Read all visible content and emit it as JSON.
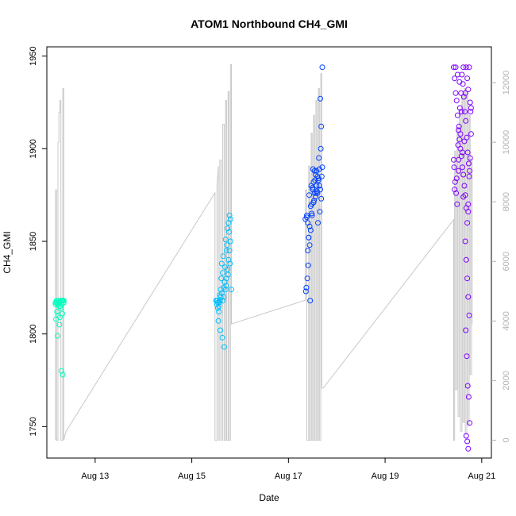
{
  "chart_data": {
    "type": "scatter",
    "title": "ATOM1 Northbound CH4_GMI",
    "xlabel": "Date",
    "ylabel": "CH4_GMI",
    "x_ticks": [
      "Aug 13",
      "Aug 15",
      "Aug 17",
      "Aug 19",
      "Aug 21"
    ],
    "x_range_days": [
      12.0,
      21.2
    ],
    "y_left": {
      "range": [
        1733,
        1955
      ],
      "ticks": [
        1750,
        1800,
        1850,
        1900,
        1950
      ]
    },
    "y_right": {
      "range": [
        -600,
        13200
      ],
      "ticks": [
        0,
        2000,
        4000,
        6000,
        8000,
        10000,
        12000
      ],
      "color": "#b3b3b3"
    },
    "grid": false,
    "legend": "none",
    "series": [
      {
        "kind": "points",
        "axis": "left",
        "colors": [
          "#00ffbf",
          "#00bfff",
          "#0040ff",
          "#7f00ff"
        ],
        "clusters": [
          {
            "x": [
              12.18,
              12.2,
              12.22,
              12.24,
              12.26,
              12.28,
              12.3,
              12.31,
              12.33,
              12.35,
              12.21,
              12.23,
              12.25,
              12.27,
              12.29,
              12.32,
              12.19,
              12.34,
              12.22,
              12.26,
              12.3,
              12.33,
              12.2,
              12.28,
              12.24,
              12.32,
              12.18,
              12.35
            ],
            "y": [
              1817,
              1818,
              1816,
              1818,
              1817,
              1815,
              1818,
              1816,
              1818,
              1817,
              1812,
              1810,
              1815,
              1809,
              1814,
              1811,
              1808,
              1818,
              1799,
              1805,
              1780,
              1778,
              1817,
              1818,
              1817,
              1818,
              1816,
              1818
            ]
          },
          {
            "x": [
              15.5,
              15.52,
              15.54,
              15.56,
              15.58,
              15.6,
              15.62,
              15.64,
              15.66,
              15.68,
              15.7,
              15.72,
              15.74,
              15.76,
              15.78,
              15.8,
              15.55,
              15.59,
              15.63,
              15.67,
              15.71,
              15.75,
              15.79,
              15.53,
              15.57,
              15.61,
              15.65,
              15.69,
              15.73,
              15.77,
              15.52,
              15.56,
              15.6,
              15.64,
              15.68,
              15.72,
              15.76,
              15.8,
              15.58,
              15.62,
              15.66,
              15.7,
              15.74,
              15.78,
              15.54,
              15.82
            ],
            "y": [
              1818,
              1816,
              1814,
              1812,
              1818,
              1820,
              1822,
              1818,
              1825,
              1828,
              1824,
              1830,
              1835,
              1840,
              1845,
              1850,
              1807,
              1802,
              1798,
              1793,
              1826,
              1832,
              1838,
              1818,
              1817,
              1830,
              1842,
              1836,
              1848,
              1855,
              1818,
              1815,
              1824,
              1833,
              1828,
              1845,
              1860,
              1862,
              1821,
              1838,
              1820,
              1851,
              1857,
              1864,
              1817,
              1824
            ]
          },
          {
            "x": [
              17.35,
              17.38,
              17.4,
              17.42,
              17.44,
              17.46,
              17.48,
              17.5,
              17.52,
              17.54,
              17.56,
              17.58,
              17.6,
              17.62,
              17.64,
              17.66,
              17.68,
              17.7,
              17.37,
              17.41,
              17.45,
              17.49,
              17.53,
              17.57,
              17.61,
              17.65,
              17.69,
              17.39,
              17.43,
              17.47,
              17.51,
              17.55,
              17.59,
              17.63,
              17.67,
              17.36,
              17.44,
              17.52,
              17.6,
              17.68,
              17.4,
              17.48,
              17.56,
              17.64,
              17.42,
              17.5,
              17.58,
              17.66,
              17.7,
              17.38,
              17.46,
              17.54,
              17.62
            ],
            "y": [
              1862,
              1864,
              1860,
              1852,
              1848,
              1856,
              1870,
              1878,
              1882,
              1888,
              1886,
              1880,
              1876,
              1884,
              1889,
              1878,
              1873,
              1890,
              1825,
              1837,
              1818,
              1864,
              1872,
              1876,
              1860,
              1866,
              1885,
              1830,
              1875,
              1880,
              1889,
              1883,
              1877,
              1895,
              1900,
              1823,
              1858,
              1871,
              1885,
              1912,
              1845,
              1865,
              1874,
              1880,
              1852,
              1879,
              1888,
              1927,
              1944,
              1863,
              1869,
              1876,
              1883
            ]
          },
          {
            "x": [
              20.42,
              20.44,
              20.46,
              20.48,
              20.5,
              20.52,
              20.54,
              20.56,
              20.58,
              20.6,
              20.62,
              20.64,
              20.66,
              20.68,
              20.7,
              20.72,
              20.74,
              20.76,
              20.78,
              20.43,
              20.45,
              20.47,
              20.49,
              20.51,
              20.53,
              20.55,
              20.57,
              20.59,
              20.61,
              20.63,
              20.65,
              20.67,
              20.69,
              20.71,
              20.73,
              20.75,
              20.77,
              20.44,
              20.48,
              20.52,
              20.56,
              20.6,
              20.64,
              20.68,
              20.72,
              20.76,
              20.46,
              20.5,
              20.54,
              20.58,
              20.62,
              20.66,
              20.7,
              20.74,
              20.78,
              20.42,
              20.52,
              20.62,
              20.72,
              20.66,
              20.68,
              20.7,
              20.72,
              20.74,
              20.67,
              20.69,
              20.71,
              20.73,
              20.75,
              20.68,
              20.7,
              20.72
            ],
            "y": [
              1944,
              1938,
              1930,
              1926,
              1918,
              1910,
              1905,
              1900,
              1896,
              1890,
              1886,
              1880,
              1875,
              1868,
              1860,
              1870,
              1885,
              1895,
              1908,
              1890,
              1882,
              1876,
              1870,
              1902,
              1912,
              1922,
              1930,
              1940,
              1935,
              1928,
              1920,
              1915,
              1906,
              1898,
              1892,
              1888,
              1920,
              1878,
              1884,
              1894,
              1908,
              1898,
              1904,
              1944,
              1932,
              1925,
              1944,
              1940,
              1936,
              1920,
              1944,
              1930,
              1938,
              1944,
              1922,
              1894,
              1888,
              1874,
              1866,
              1850,
              1840,
              1830,
              1820,
              1810,
              1802,
              1788,
              1772,
              1766,
              1752,
              1745,
              1742,
              1738
            ]
          }
        ]
      },
      {
        "kind": "altitude-trace",
        "axis": "right",
        "color": "#c8c8c8",
        "path": [
          [
            12.18,
            0
          ],
          [
            12.18,
            8400
          ],
          [
            12.2,
            8400
          ],
          [
            12.2,
            0
          ],
          [
            12.23,
            0
          ],
          [
            12.23,
            10000
          ],
          [
            12.25,
            10000
          ],
          [
            12.25,
            11000
          ],
          [
            12.27,
            11000
          ],
          [
            12.27,
            11400
          ],
          [
            12.29,
            11400
          ],
          [
            12.29,
            0
          ],
          [
            12.33,
            0
          ],
          [
            12.33,
            11800
          ],
          [
            12.35,
            11800
          ],
          [
            12.35,
            0
          ],
          [
            12.4,
            300
          ],
          [
            15.48,
            8300
          ],
          [
            15.48,
            0
          ],
          [
            15.52,
            0
          ],
          [
            15.52,
            8500
          ],
          [
            15.55,
            9200
          ],
          [
            15.55,
            0
          ],
          [
            15.58,
            0
          ],
          [
            15.58,
            9400
          ],
          [
            15.61,
            9400
          ],
          [
            15.61,
            0
          ],
          [
            15.64,
            0
          ],
          [
            15.64,
            10600
          ],
          [
            15.67,
            10600
          ],
          [
            15.67,
            0
          ],
          [
            15.7,
            0
          ],
          [
            15.7,
            11400
          ],
          [
            15.72,
            11400
          ],
          [
            15.72,
            0
          ],
          [
            15.75,
            0
          ],
          [
            15.75,
            11700
          ],
          [
            15.77,
            11700
          ],
          [
            15.77,
            0
          ],
          [
            15.8,
            0
          ],
          [
            15.8,
            12600
          ],
          [
            15.82,
            12600
          ],
          [
            15.82,
            3900
          ],
          [
            17.35,
            4700
          ],
          [
            17.35,
            8400
          ],
          [
            17.38,
            8400
          ],
          [
            17.38,
            0
          ],
          [
            17.42,
            0
          ],
          [
            17.42,
            9200
          ],
          [
            17.44,
            9200
          ],
          [
            17.44,
            0
          ],
          [
            17.47,
            0
          ],
          [
            17.47,
            10300
          ],
          [
            17.49,
            10300
          ],
          [
            17.49,
            0
          ],
          [
            17.52,
            0
          ],
          [
            17.52,
            10900
          ],
          [
            17.54,
            10900
          ],
          [
            17.54,
            0
          ],
          [
            17.57,
            0
          ],
          [
            17.57,
            11400
          ],
          [
            17.59,
            11400
          ],
          [
            17.59,
            0
          ],
          [
            17.62,
            0
          ],
          [
            17.62,
            11800
          ],
          [
            17.64,
            11800
          ],
          [
            17.64,
            0
          ],
          [
            17.67,
            0
          ],
          [
            17.67,
            12300
          ],
          [
            17.69,
            12300
          ],
          [
            17.69,
            1750
          ],
          [
            17.72,
            1750
          ],
          [
            20.42,
            7400
          ],
          [
            20.42,
            0
          ],
          [
            20.44,
            0
          ],
          [
            20.44,
            9700
          ],
          [
            20.46,
            9700
          ],
          [
            20.46,
            1700
          ],
          [
            20.49,
            1700
          ],
          [
            20.49,
            10500
          ],
          [
            20.51,
            10500
          ],
          [
            20.51,
            800
          ],
          [
            20.54,
            800
          ],
          [
            20.54,
            11100
          ],
          [
            20.56,
            11100
          ],
          [
            20.56,
            300
          ],
          [
            20.59,
            300
          ],
          [
            20.59,
            11600
          ],
          [
            20.61,
            11600
          ],
          [
            20.61,
            600
          ],
          [
            20.64,
            600
          ],
          [
            20.64,
            11800
          ],
          [
            20.66,
            11800
          ],
          [
            20.66,
            200
          ],
          [
            20.69,
            200
          ],
          [
            20.69,
            11700
          ],
          [
            20.71,
            11700
          ],
          [
            20.71,
            500
          ],
          [
            20.74,
            500
          ],
          [
            20.74,
            10900
          ],
          [
            20.76,
            10900
          ],
          [
            20.76,
            2200
          ],
          [
            20.79,
            2200
          ],
          [
            20.79,
            9400
          ],
          [
            20.8,
            9400
          ],
          [
            20.8,
            3900
          ]
        ]
      }
    ]
  }
}
